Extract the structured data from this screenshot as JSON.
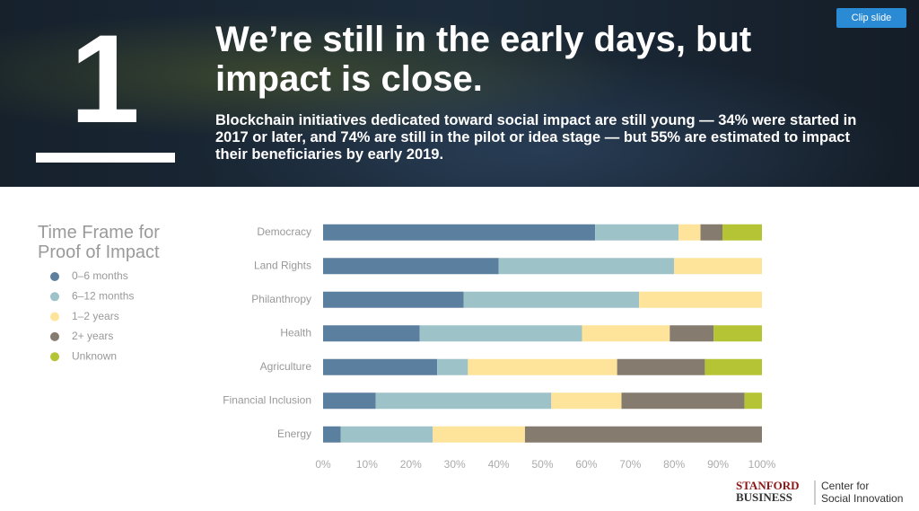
{
  "slide": {
    "number": "1",
    "title": "We’re still in the early days, but impact is close.",
    "subtitle": "Blockchain initiatives dedicated toward social impact are still young — 34% were started in 2017 or later, and 74% are still in the pilot or idea stage — but 55% are estimated to impact their beneficiaries by early 2019."
  },
  "button": "Clip slide",
  "logo": {
    "school_top": "STANFORD",
    "school_bottom": "BUSINESS",
    "center_line1": "Center for",
    "center_line2": "Social Innovation"
  },
  "chart_data": {
    "type": "stacked-bar-horizontal",
    "legend_title": "Time Frame for Proof of Impact",
    "legend": "left",
    "categories": [
      "Democracy",
      "Land Rights",
      "Philanthropy",
      "Health",
      "Agriculture",
      "Financial Inclusion",
      "Energy"
    ],
    "series": [
      {
        "name": "0–6 months",
        "color": "#5b7f9e",
        "values": [
          62,
          40,
          32,
          22,
          26,
          12,
          4
        ]
      },
      {
        "name": "6–12 months",
        "color": "#9dc3c9",
        "values": [
          19,
          40,
          40,
          37,
          7,
          40,
          21
        ]
      },
      {
        "name": "1–2 years",
        "color": "#fde49a",
        "values": [
          5,
          20,
          28,
          20,
          34,
          16,
          21
        ]
      },
      {
        "name": "2+ years",
        "color": "#857b6e",
        "values": [
          5,
          0,
          0,
          10,
          20,
          28,
          54
        ]
      },
      {
        "name": "Unknown",
        "color": "#b5c435",
        "values": [
          9,
          0,
          0,
          11,
          13,
          4,
          0
        ]
      }
    ],
    "xlim": [
      0,
      100
    ],
    "xticks": [
      {
        "value": 0,
        "label": "0%"
      },
      {
        "value": 10,
        "label": "10%"
      },
      {
        "value": 20,
        "label": "20%"
      },
      {
        "value": 30,
        "label": "30%"
      },
      {
        "value": 40,
        "label": "40%"
      },
      {
        "value": 50,
        "label": "50%"
      },
      {
        "value": 60,
        "label": "60%"
      },
      {
        "value": 70,
        "label": "70%"
      },
      {
        "value": 80,
        "label": "80%"
      },
      {
        "value": 90,
        "label": "90%"
      },
      {
        "value": 100,
        "label": "100%"
      }
    ]
  }
}
